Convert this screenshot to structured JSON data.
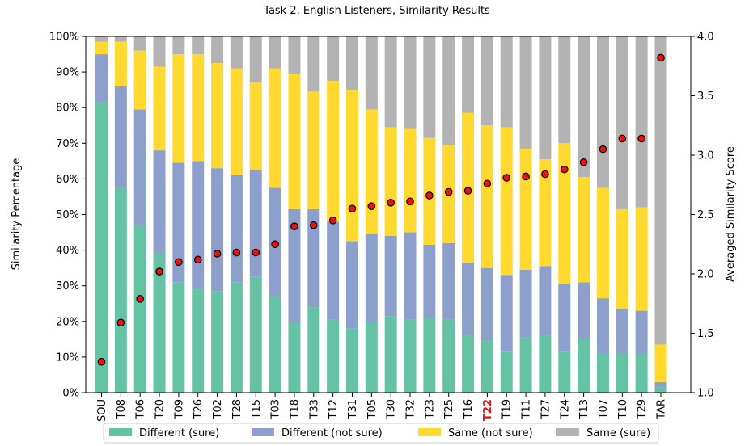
{
  "chart_data": {
    "type": "bar",
    "stacked": true,
    "title": "Task 2, English Listeners, Similarity Results",
    "ylabel": "Similarity Percentage",
    "y2label": "Averaged Similarity Score",
    "ylim": [
      0,
      100
    ],
    "y2lim": [
      1.0,
      4.0
    ],
    "y_ticks": [
      "0%",
      "10%",
      "20%",
      "30%",
      "40%",
      "50%",
      "60%",
      "70%",
      "80%",
      "90%",
      "100%"
    ],
    "y2_ticks": [
      "1.0",
      "1.5",
      "2.0",
      "2.5",
      "3.0",
      "3.5",
      "4.0"
    ],
    "highlight_category": "T22",
    "highlight_color": "#ee1111",
    "categories": [
      "SOU",
      "T08",
      "T06",
      "T20",
      "T09",
      "T26",
      "T02",
      "T28",
      "T15",
      "T03",
      "T18",
      "T33",
      "T12",
      "T31",
      "T05",
      "T30",
      "T32",
      "T23",
      "T25",
      "T16",
      "T22",
      "T19",
      "T11",
      "T27",
      "T24",
      "T13",
      "T07",
      "T10",
      "T29",
      "TAR"
    ],
    "series": [
      {
        "name": "Different (sure)",
        "color": "#66c2a5",
        "values": [
          81.5,
          57.5,
          47,
          39,
          31,
          29,
          28.5,
          31,
          32.5,
          27,
          19.5,
          24,
          20.5,
          18,
          19.5,
          21.5,
          20.5,
          21,
          20.5,
          16,
          14.5,
          11.5,
          15.5,
          16,
          11.5,
          15,
          11,
          11,
          11,
          1.5
        ]
      },
      {
        "name": "Different (not sure)",
        "color": "#8da0cb",
        "values": [
          13.5,
          28.5,
          32.5,
          29,
          33.5,
          36,
          34.5,
          30,
          30,
          30.5,
          32,
          27.5,
          27.5,
          24.5,
          25,
          22.5,
          24.5,
          20.5,
          21.5,
          20.5,
          20.5,
          21.5,
          19,
          19.5,
          19,
          16,
          15.5,
          12.5,
          12,
          1.5
        ]
      },
      {
        "name": "Same (not sure)",
        "color": "#ffd92f",
        "values": [
          3.5,
          12.5,
          16.5,
          23.5,
          30.5,
          30,
          29.5,
          30,
          24.5,
          33.5,
          38,
          33,
          39.5,
          42.5,
          35,
          30.5,
          29,
          30,
          27.5,
          42,
          40,
          41.5,
          34,
          30,
          39.5,
          29.5,
          31,
          28,
          29,
          10.5
        ]
      },
      {
        "name": "Same (sure)",
        "color": "#b3b3b3",
        "values": [
          1.5,
          1.5,
          4,
          8.5,
          5,
          5,
          7.5,
          9,
          13,
          9,
          10.5,
          15.5,
          12.5,
          15,
          20.5,
          25.5,
          26,
          28.5,
          30.5,
          21.5,
          25,
          25.5,
          31.5,
          34.5,
          30,
          39.5,
          42.5,
          48.5,
          48,
          86.5
        ]
      }
    ],
    "avg_score": {
      "name": "Averaged Similarity Score",
      "marker_color": "#ee1111",
      "values": [
        1.26,
        1.59,
        1.79,
        2.02,
        2.1,
        2.12,
        2.17,
        2.18,
        2.18,
        2.25,
        2.4,
        2.41,
        2.45,
        2.55,
        2.57,
        2.6,
        2.61,
        2.66,
        2.69,
        2.7,
        2.76,
        2.81,
        2.82,
        2.84,
        2.88,
        2.94,
        3.05,
        3.14,
        3.14,
        3.82
      ]
    },
    "legend_position": "bottom"
  }
}
